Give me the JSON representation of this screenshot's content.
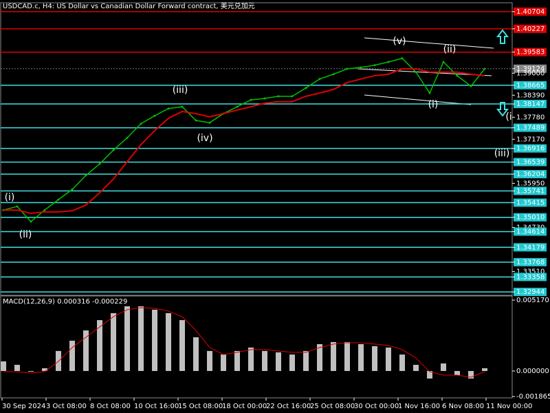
{
  "chart_data": [
    {
      "type": "line",
      "title": "USDCAD.c, H4:  US Dollar vs Canadian Dollar Forward contract, 美元兑加元",
      "ylim": [
        1.3287,
        1.4093
      ],
      "yticks": [
        {
          "value": 1.40704,
          "label": "1.40704"
        },
        {
          "value": 1.40227,
          "label": "1.40227"
        },
        {
          "value": 1.39583,
          "label": "1.39583"
        },
        {
          "value": 1.39124,
          "label": "1.39124"
        },
        {
          "value": 1.39,
          "label": "1.39000"
        },
        {
          "value": 1.38665,
          "label": "1.38665"
        },
        {
          "value": 1.3839,
          "label": "1.38390"
        },
        {
          "value": 1.38147,
          "label": "1.38147"
        },
        {
          "value": 1.3778,
          "label": "1.37780"
        },
        {
          "value": 1.37489,
          "label": "1.37489"
        },
        {
          "value": 1.3717,
          "label": "1.37170"
        },
        {
          "value": 1.36916,
          "label": "1.36916"
        },
        {
          "value": 1.36539,
          "label": "1.36539"
        },
        {
          "value": 1.36204,
          "label": "1.36204"
        },
        {
          "value": 1.3595,
          "label": "1.35950"
        },
        {
          "value": 1.35741,
          "label": "1.35741"
        },
        {
          "value": 1.35415,
          "label": "1.35415"
        },
        {
          "value": 1.3501,
          "label": "1.35010"
        },
        {
          "value": 1.3473,
          "label": "1.34730"
        },
        {
          "value": 1.34614,
          "label": "1.34614"
        },
        {
          "value": 1.34179,
          "label": "1.34179"
        },
        {
          "value": 1.33768,
          "label": "1.33768"
        },
        {
          "value": 1.3351,
          "label": "1.33510"
        },
        {
          "value": 1.33358,
          "label": "1.33358"
        },
        {
          "value": 1.32944,
          "label": "1.32944"
        }
      ],
      "resistance_levels": [
        1.40704,
        1.40227,
        1.39583
      ],
      "support_levels": [
        1.38665,
        1.38147,
        1.37489,
        1.36916,
        1.36539,
        1.36204,
        1.35741,
        1.35415,
        1.3501,
        1.34614,
        1.34179,
        1.33768,
        1.33358,
        1.32944
      ],
      "current_price": 1.39124,
      "series": [
        {
          "name": "Price",
          "color": "#00c000",
          "values": [
            1.3521,
            1.3531,
            1.3489,
            1.3521,
            1.355,
            1.3578,
            1.3617,
            1.3649,
            1.3687,
            1.3721,
            1.376,
            1.3782,
            1.3802,
            1.3807,
            1.3769,
            1.3763,
            1.3788,
            1.3807,
            1.3826,
            1.383,
            1.3836,
            1.3836,
            1.3859,
            1.3884,
            1.3897,
            1.3912,
            1.3916,
            1.3922,
            1.3931,
            1.3941,
            1.3903,
            1.3845,
            1.3931,
            1.3893,
            1.3864,
            1.3912
          ]
        },
        {
          "name": "MA",
          "color": "#e00000",
          "values": [
            1.3521,
            1.3521,
            1.3512,
            1.3516,
            1.3516,
            1.3519,
            1.3535,
            1.3569,
            1.3607,
            1.3655,
            1.3702,
            1.3741,
            1.3775,
            1.3794,
            1.3788,
            1.3779,
            1.3788,
            1.3798,
            1.3807,
            1.3817,
            1.3821,
            1.3821,
            1.3836,
            1.3845,
            1.3855,
            1.3874,
            1.3884,
            1.3893,
            1.3897,
            1.3912,
            1.3912,
            1.3903,
            1.3903,
            1.3903,
            1.3897,
            1.3893
          ]
        }
      ],
      "annotations": [
        "(i)",
        "(ii)",
        "(iii)",
        "(iv)",
        "(v)",
        "(i)",
        "(ii)",
        "(i",
        "(iii)"
      ],
      "x_labels": [
        "30 Sep 2024",
        "3 Oct 08:00",
        "8 Oct 08:00",
        "10 Oct 16:00",
        "15 Oct 08:00",
        "18 Oct 00:00",
        "22 Oct 16:00",
        "25 Oct 08:00",
        "30 Oct 00:00",
        "1 Nov 16:00",
        "6 Nov 08:00",
        "11 Nov 00:00"
      ]
    },
    {
      "type": "macd",
      "title": "MACD(12,26,9) 0.000316 -0.000229",
      "ylim": [
        -0.00231,
        0.00542
      ],
      "yticks": [
        {
          "value": 0.00517,
          "label": "0.005170"
        },
        {
          "value": 0,
          "label": "0.000000"
        },
        {
          "value": -0.001865,
          "label": "-0.001865"
        }
      ],
      "series": [
        {
          "name": "MACD",
          "color": "#c0c0c0",
          "values": [
            0.0007,
            0.00045,
            -5e-05,
            0.0002,
            0.00146,
            0.00221,
            0.00296,
            0.00371,
            0.00422,
            0.00472,
            0.00472,
            0.00447,
            0.00422,
            0.00371,
            0.00246,
            0.00146,
            0.0012,
            0.00146,
            0.00171,
            0.00146,
            0.00136,
            0.0012,
            0.00146,
            0.00196,
            0.00211,
            0.00211,
            0.00196,
            0.00181,
            0.00171,
            0.0012,
            0.00045,
            -0.00055,
            0.00055,
            -0.0003,
            -0.00055,
            0.0002
          ]
        },
        {
          "name": "Signal",
          "color": "#e00000",
          "values": [
            -5e-05,
            -5e-05,
            -0.00015,
            -5e-05,
            0.0007,
            0.00171,
            0.00246,
            0.00321,
            0.00396,
            0.00447,
            0.00462,
            0.00457,
            0.00437,
            0.00396,
            0.00296,
            0.00171,
            0.0012,
            0.00136,
            0.00156,
            0.00156,
            0.00146,
            0.00136,
            0.00136,
            0.00171,
            0.00196,
            0.00206,
            0.00206,
            0.00196,
            0.00186,
            0.00156,
            0.00095,
            -5e-05,
            -0.0003,
            -0.0003,
            -0.00045,
            -5e-05
          ]
        }
      ]
    }
  ]
}
